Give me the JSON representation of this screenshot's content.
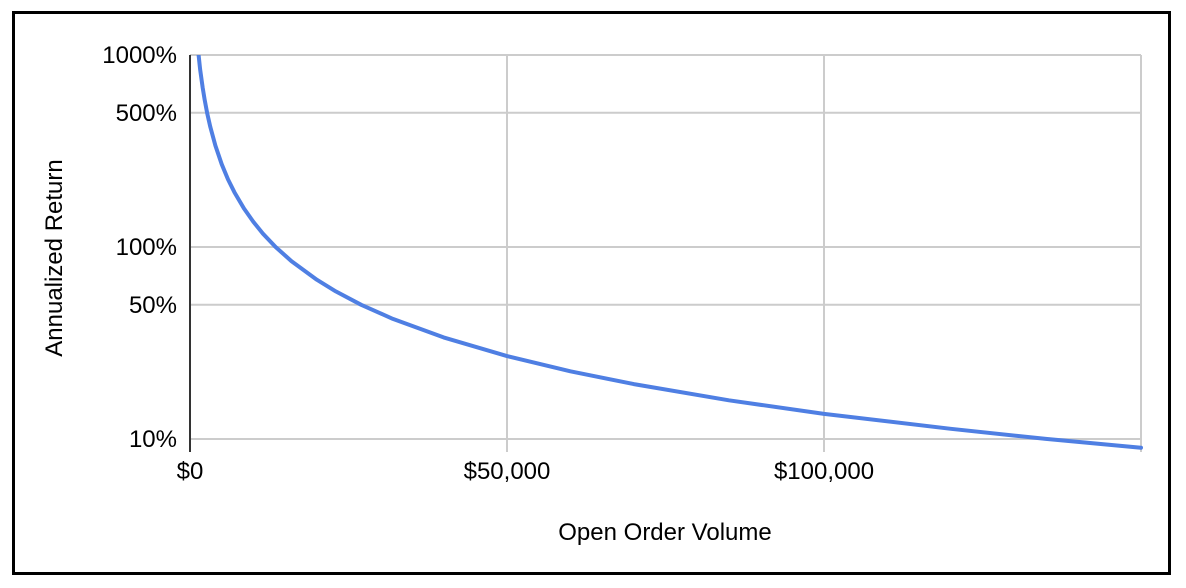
{
  "chart_data": {
    "type": "line",
    "title": "",
    "xlabel": "Open Order Volume",
    "ylabel": "Annualized Return",
    "x_scale": "linear",
    "y_scale": "log",
    "xlim": [
      0,
      150000
    ],
    "ylim": [
      8.55,
      1000
    ],
    "grid": true,
    "legend_position": "none",
    "x_ticks": [
      {
        "label": "$0",
        "value": 0
      },
      {
        "label": "$50,000",
        "value": 50000
      },
      {
        "label": "$100,000",
        "value": 100000
      },
      {
        "label": "",
        "value": 150000
      }
    ],
    "y_ticks": [
      {
        "label": "1000%",
        "value": 1000
      },
      {
        "label": "500%",
        "value": 500
      },
      {
        "label": "100%",
        "value": 100
      },
      {
        "label": "50%",
        "value": 50
      },
      {
        "label": "10%",
        "value": 10
      }
    ],
    "series": [
      {
        "name": "Annualized Return",
        "points": [
          [
            1350,
            1000
          ],
          [
            1600,
            843.8
          ],
          [
            2000,
            675
          ],
          [
            2300,
            587
          ],
          [
            2700,
            500
          ],
          [
            3200,
            421.9
          ],
          [
            4000,
            337.5
          ],
          [
            5000,
            270
          ],
          [
            6000,
            225
          ],
          [
            7000,
            192.9
          ],
          [
            8500,
            158.8
          ],
          [
            10000,
            135
          ],
          [
            11500,
            117.4
          ],
          [
            13500,
            100
          ],
          [
            16000,
            84.4
          ],
          [
            20000,
            67.5
          ],
          [
            23000,
            58.7
          ],
          [
            27000,
            50
          ],
          [
            32000,
            42.2
          ],
          [
            40000,
            33.8
          ],
          [
            50000,
            27
          ],
          [
            60000,
            22.5
          ],
          [
            70000,
            19.3
          ],
          [
            85000,
            15.9
          ],
          [
            100000,
            13.5
          ],
          [
            120000,
            11.3
          ],
          [
            135000,
            10
          ],
          [
            150000,
            9
          ]
        ]
      }
    ],
    "colors": {
      "series": "#4f7fe3",
      "gridline": "#cccccc",
      "axis": "#333333",
      "text": "#000000",
      "frame": "#000000",
      "background": "#ffffff"
    }
  }
}
